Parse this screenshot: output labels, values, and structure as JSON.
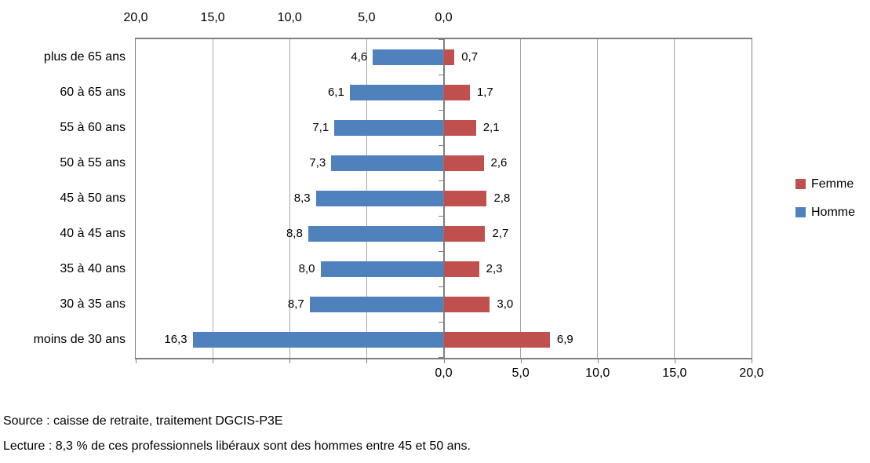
{
  "chart_data": {
    "type": "bar",
    "variant": "population-pyramid-horizontal",
    "categories": [
      "plus de 65 ans",
      "60 à 65 ans",
      "55 à 60 ans",
      "50 à 55 ans",
      "45 à 50 ans",
      "40 à 45 ans",
      "35 à 40 ans",
      "30 à 35 ans",
      "moins de 30 ans"
    ],
    "series": [
      {
        "name": "Homme",
        "side": "left",
        "color": "#4F81BD",
        "values": [
          4.6,
          6.1,
          7.1,
          7.3,
          8.3,
          8.8,
          8.0,
          8.7,
          16.3
        ],
        "value_labels": [
          "4,6",
          "6,1",
          "7,1",
          "7,3",
          "8,3",
          "8,8",
          "8,0",
          "8,7",
          "16,3"
        ]
      },
      {
        "name": "Femme",
        "side": "right",
        "color": "#C0504D",
        "values": [
          0.7,
          1.7,
          2.1,
          2.6,
          2.8,
          2.7,
          2.3,
          3.0,
          6.9
        ],
        "value_labels": [
          "0,7",
          "1,7",
          "2,1",
          "2,6",
          "2,8",
          "2,7",
          "2,3",
          "3,0",
          "6,9"
        ]
      }
    ],
    "axes": {
      "value_max": 20,
      "value_step": 5,
      "top_tick_labels": [
        "20,0",
        "15,0",
        "10,0",
        "5,0",
        "0,0"
      ],
      "bottom_tick_labels": [
        "0,0",
        "5,0",
        "10,0",
        "15,0",
        "20,0"
      ]
    },
    "grid": {
      "vertical": true,
      "color": "#A6A6A6"
    },
    "legend": {
      "position": "right",
      "entries": [
        {
          "label": "Femme",
          "color": "#C0504D"
        },
        {
          "label": "Homme",
          "color": "#4F81BD"
        }
      ]
    }
  },
  "notes": {
    "source": "Source : caisse de retraite, traitement DGCIS-P3E",
    "lecture": "Lecture : 8,3 % de ces professionnels libéraux sont des hommes entre 45 et 50 ans."
  },
  "colors": {
    "homme": "#4F81BD",
    "femme": "#C0504D",
    "axis_line": "#7F7F7F",
    "gridline": "#A6A6A6",
    "text": "#000000",
    "background": "#FFFFFF"
  }
}
